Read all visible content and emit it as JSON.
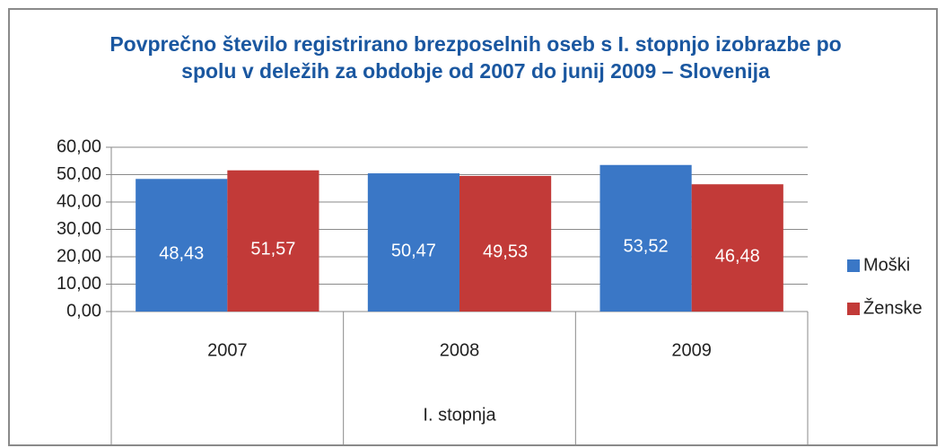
{
  "chart_data": {
    "type": "bar",
    "title": "Povprečno število registrirano brezposelnih oseb s I. stopnjo izobrazbe po spolu  v deležih za obdobje od 2007 do junij 2009 – Slovenija",
    "categories": [
      "2007",
      "2008",
      "2009"
    ],
    "group_label": "I. stopnja",
    "series": [
      {
        "name": "Moški",
        "color": "#3a77c6",
        "values": [
          48.43,
          50.47,
          53.52
        ],
        "value_labels": [
          "48,43",
          "50,47",
          "53,52"
        ]
      },
      {
        "name": "Ženske",
        "color": "#c23a38",
        "values": [
          51.57,
          49.53,
          46.48
        ],
        "value_labels": [
          "51,57",
          "49,53",
          "46,48"
        ]
      }
    ],
    "ylim": [
      0,
      60
    ],
    "yticks": [
      {
        "value": 0,
        "label": "0,00"
      },
      {
        "value": 10,
        "label": "10,00"
      },
      {
        "value": 20,
        "label": "20,00"
      },
      {
        "value": 30,
        "label": "30,00"
      },
      {
        "value": 40,
        "label": "40,00"
      },
      {
        "value": 50,
        "label": "50,00"
      },
      {
        "value": 60,
        "label": "60,00"
      }
    ],
    "grid": true,
    "legend": "right"
  }
}
